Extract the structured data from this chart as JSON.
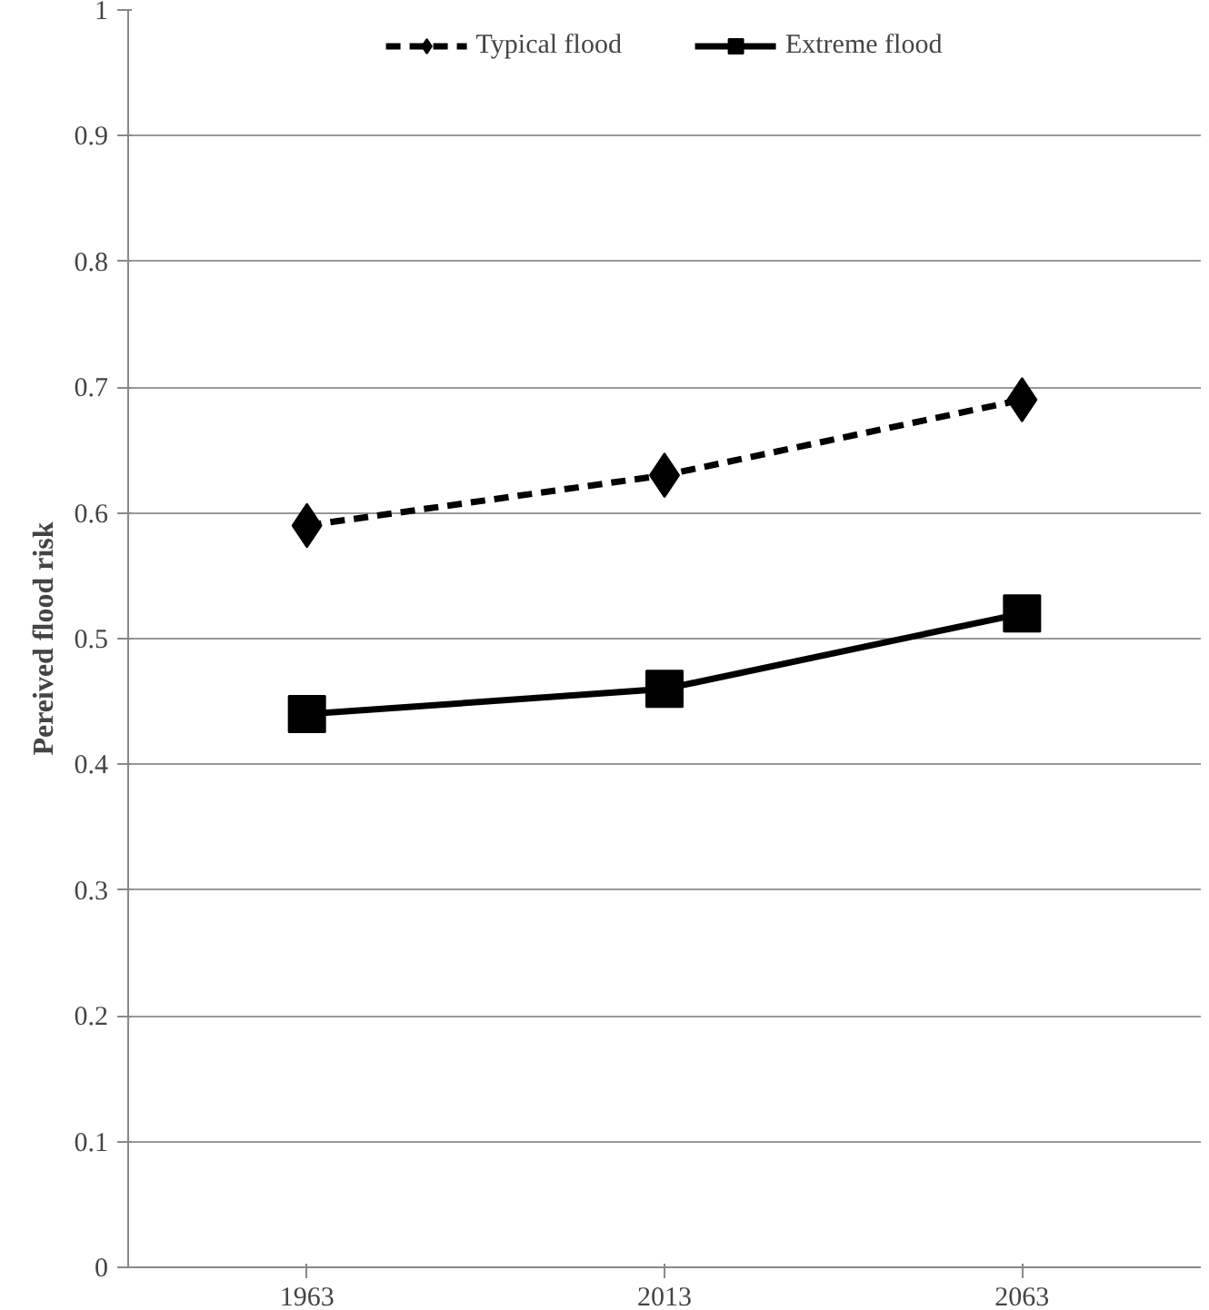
{
  "chart_data": {
    "type": "line",
    "ylabel": "Pereived flood risk",
    "categories": [
      "1963",
      "2013",
      "2063"
    ],
    "series": [
      {
        "name": "Typical flood",
        "color": "#000000",
        "values": [
          0.59,
          0.63,
          0.69
        ],
        "marker": "diamond",
        "line_style": "dashed"
      },
      {
        "name": "Extreme flood",
        "color": "#000000",
        "values": [
          0.44,
          0.46,
          0.52
        ],
        "marker": "square",
        "line_style": "solid"
      }
    ],
    "ylim": [
      0,
      1
    ],
    "yticks": [
      0,
      0.1,
      0.2,
      0.3,
      0.4,
      0.5,
      0.6,
      0.7,
      0.8,
      0.9,
      1
    ],
    "grid": "y",
    "legend": "top"
  }
}
